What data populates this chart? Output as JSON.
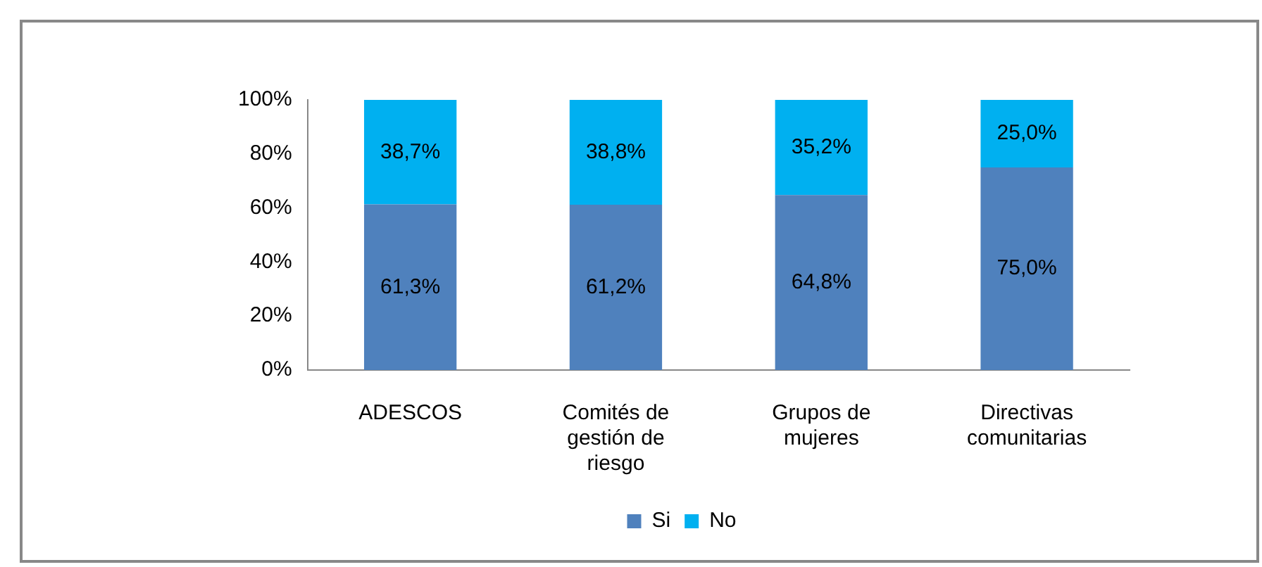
{
  "chart_data": {
    "type": "bar",
    "stacked": true,
    "categories": [
      "ADESCOS",
      "Comités de gestión de riesgo",
      "Grupos de mujeres",
      "Directivas comunitarias"
    ],
    "series": [
      {
        "name": "Si",
        "color": "#4f81bd",
        "values": [
          61.3,
          61.2,
          64.8,
          75.0
        ],
        "value_labels": [
          "61,3%",
          "61,2%",
          "64,8%",
          "75,0%"
        ]
      },
      {
        "name": "No",
        "color": "#00b0f0",
        "values": [
          38.7,
          38.8,
          35.2,
          25.0
        ],
        "value_labels": [
          "38,7%",
          "38,8%",
          "35,2%",
          "25,0%"
        ]
      }
    ],
    "ylim": [
      0,
      100
    ],
    "yticks": [
      {
        "value": 0,
        "label": "0%"
      },
      {
        "value": 20,
        "label": "20%"
      },
      {
        "value": 40,
        "label": "40%"
      },
      {
        "value": 60,
        "label": "60%"
      },
      {
        "value": 80,
        "label": "80%"
      },
      {
        "value": 100,
        "label": "100%"
      }
    ],
    "legend": "bottom"
  }
}
